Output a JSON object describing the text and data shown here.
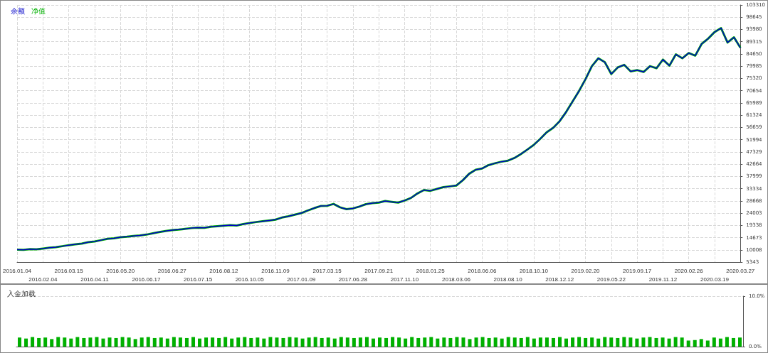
{
  "chart_data": [
    {
      "type": "line",
      "categories": [
        "2016.01.04",
        null,
        null,
        null,
        "2016.02.04",
        null,
        null,
        null,
        "2016.03.15",
        null,
        null,
        null,
        "2016.04.11",
        null,
        null,
        null,
        "2016.05.20",
        null,
        null,
        null,
        "2016.06.17",
        null,
        null,
        null,
        "2016.06.27",
        null,
        null,
        null,
        "2016.07.15",
        null,
        null,
        null,
        "2016.08.12",
        null,
        null,
        null,
        "2016.10.05",
        null,
        null,
        null,
        "2016.11.09",
        null,
        null,
        null,
        "2017.01.09",
        null,
        null,
        null,
        "2017.03.15",
        null,
        null,
        null,
        "2017.06.28",
        null,
        null,
        null,
        "2017.09.21",
        null,
        null,
        null,
        "2017.11.10",
        null,
        null,
        null,
        "2018.01.25",
        null,
        null,
        null,
        "2018.03.06",
        null,
        null,
        null,
        "2018.06.06",
        null,
        null,
        null,
        "2018.08.10",
        null,
        null,
        null,
        "2018.10.10",
        null,
        null,
        null,
        "2018.12.12",
        null,
        null,
        null,
        "2019.02.20",
        null,
        null,
        null,
        "2019.05.22",
        null,
        null,
        null,
        "2019.09.17",
        null,
        null,
        null,
        "2019.11.12",
        null,
        null,
        null,
        "2020.02.26",
        null,
        null,
        null,
        "2020.03.19",
        null,
        null,
        null,
        "2020.03.27"
      ],
      "series": [
        {
          "name": "净值",
          "color": "#00b000",
          "values": [
            10100,
            10000,
            10300,
            10200,
            10500,
            10800,
            11000,
            11400,
            11800,
            12100,
            12400,
            12900,
            13200,
            13700,
            14200,
            14400,
            14800,
            15000,
            15300,
            15500,
            15800,
            16300,
            16800,
            17200,
            17500,
            17700,
            18000,
            18300,
            18500,
            18400,
            18800,
            19000,
            19200,
            19400,
            19300,
            19800,
            20200,
            20600,
            20900,
            21200,
            21500,
            22300,
            22800,
            23400,
            24000,
            25000,
            25900,
            26700,
            26800,
            27500,
            26200,
            25500,
            25800,
            26500,
            27400,
            27800,
            28000,
            28600,
            28300,
            28000,
            28800,
            29800,
            31500,
            32800,
            32500,
            33200,
            33900,
            34200,
            34500,
            36500,
            39000,
            40500,
            41000,
            42300,
            43000,
            43600,
            44000,
            45000,
            46500,
            48200,
            50000,
            52300,
            54800,
            56500,
            59000,
            62500,
            66500,
            70500,
            75000,
            80000,
            83000,
            81500,
            77000,
            79500,
            80500,
            78000,
            78500,
            77800,
            80000,
            79200,
            82500,
            80200,
            84500,
            83000,
            85000,
            84000,
            88500,
            90500,
            93000,
            94500,
            89000,
            91000,
            87000
          ]
        },
        {
          "name": "余额",
          "color": "#0000c8",
          "values": [
            10100,
            10000,
            10300,
            10200,
            10500,
            10800,
            11000,
            11400,
            11800,
            12100,
            12400,
            12900,
            13200,
            13700,
            14200,
            14400,
            14800,
            15000,
            15300,
            15500,
            15800,
            16300,
            16800,
            17200,
            17500,
            17700,
            18000,
            18300,
            18500,
            18400,
            18800,
            19000,
            19200,
            19400,
            19300,
            19800,
            20200,
            20600,
            20900,
            21200,
            21500,
            22300,
            22800,
            23400,
            24000,
            25000,
            25900,
            26700,
            26800,
            27500,
            26200,
            25500,
            25800,
            26500,
            27400,
            27800,
            28000,
            28600,
            28300,
            28000,
            28800,
            29800,
            31500,
            32800,
            32500,
            33200,
            33900,
            34200,
            34500,
            36500,
            39000,
            40500,
            41000,
            42300,
            43000,
            43600,
            44000,
            45000,
            46500,
            48200,
            50000,
            52300,
            54800,
            56500,
            59000,
            62500,
            66500,
            70500,
            75000,
            80000,
            83000,
            81500,
            77000,
            79500,
            80500,
            78000,
            78500,
            77800,
            80000,
            79200,
            82500,
            80200,
            84500,
            83000,
            85000,
            84000,
            88500,
            90500,
            93000,
            94500,
            89000,
            91000,
            87000
          ]
        }
      ],
      "ylim": [
        5343,
        103310
      ],
      "yticks": [
        5343,
        10008,
        14673,
        19338,
        24003,
        28668,
        33334,
        37999,
        42664,
        47329,
        51994,
        56659,
        61324,
        65989,
        70654,
        75320,
        79985,
        84650,
        89315,
        93980,
        98645,
        103310
      ],
      "grid": true,
      "legend": "top left",
      "marker": "none",
      "line_style": "solid"
    },
    {
      "type": "bar",
      "title": "入金加载",
      "categories": [
        null,
        null,
        null,
        null,
        null,
        null,
        null,
        null,
        null,
        null,
        null,
        null,
        null,
        null,
        null,
        null,
        null,
        null,
        null,
        null,
        null,
        null,
        null,
        null,
        null,
        null,
        null,
        null,
        null,
        null,
        null,
        null,
        null,
        null,
        null,
        null,
        null,
        null,
        null,
        null,
        null,
        null,
        null,
        null,
        null,
        null,
        null,
        null,
        null,
        null,
        null,
        null,
        null,
        null,
        null,
        null,
        null,
        null,
        null,
        null,
        null,
        null,
        null,
        null,
        null,
        null,
        null,
        null,
        null,
        null,
        null,
        null,
        null,
        null,
        null,
        null,
        null,
        null,
        null,
        null,
        null,
        null,
        null,
        null,
        null,
        null,
        null,
        null,
        null,
        null,
        null,
        null,
        null,
        null,
        null,
        null,
        null,
        null,
        null,
        null,
        null,
        null,
        null,
        null,
        null,
        null,
        null,
        null,
        null,
        null,
        null,
        null,
        null
      ],
      "values": [
        1.8,
        1.6,
        1.9,
        1.7,
        1.8,
        1.5,
        1.9,
        1.8,
        1.6,
        1.9,
        1.7,
        1.8,
        1.9,
        1.6,
        1.8,
        1.7,
        1.9,
        1.8,
        1.5,
        1.8,
        1.9,
        1.7,
        1.8,
        1.6,
        1.9,
        1.8,
        1.7,
        1.9,
        1.6,
        1.8,
        1.8,
        1.7,
        1.9,
        1.6,
        1.8,
        1.9,
        1.7,
        1.8,
        1.6,
        1.9,
        1.8,
        1.7,
        1.9,
        1.8,
        1.6,
        1.8,
        1.9,
        1.7,
        1.8,
        1.6,
        1.9,
        1.8,
        1.7,
        1.8,
        1.9,
        1.6,
        1.8,
        1.7,
        1.9,
        1.8,
        1.6,
        1.9,
        1.7,
        1.8,
        1.9,
        1.6,
        1.8,
        1.7,
        1.9,
        1.8,
        1.5,
        1.8,
        1.9,
        1.7,
        1.8,
        1.6,
        1.9,
        1.8,
        1.7,
        1.9,
        1.6,
        1.8,
        1.8,
        1.7,
        1.9,
        1.6,
        1.8,
        1.9,
        1.7,
        1.8,
        1.6,
        1.9,
        1.8,
        1.7,
        1.9,
        1.8,
        1.6,
        1.8,
        1.9,
        1.7,
        1.8,
        1.6,
        1.9,
        1.8,
        1.2,
        1.3,
        1.5,
        1.2,
        1.8,
        1.6,
        1.9,
        1.7,
        1.8
      ],
      "color": "#00b000",
      "ylim": [
        0,
        10
      ],
      "yticks": [
        {
          "value": 0,
          "label": "0.0%"
        },
        {
          "value": 10,
          "label": "10.0%"
        }
      ],
      "grid": true
    }
  ]
}
